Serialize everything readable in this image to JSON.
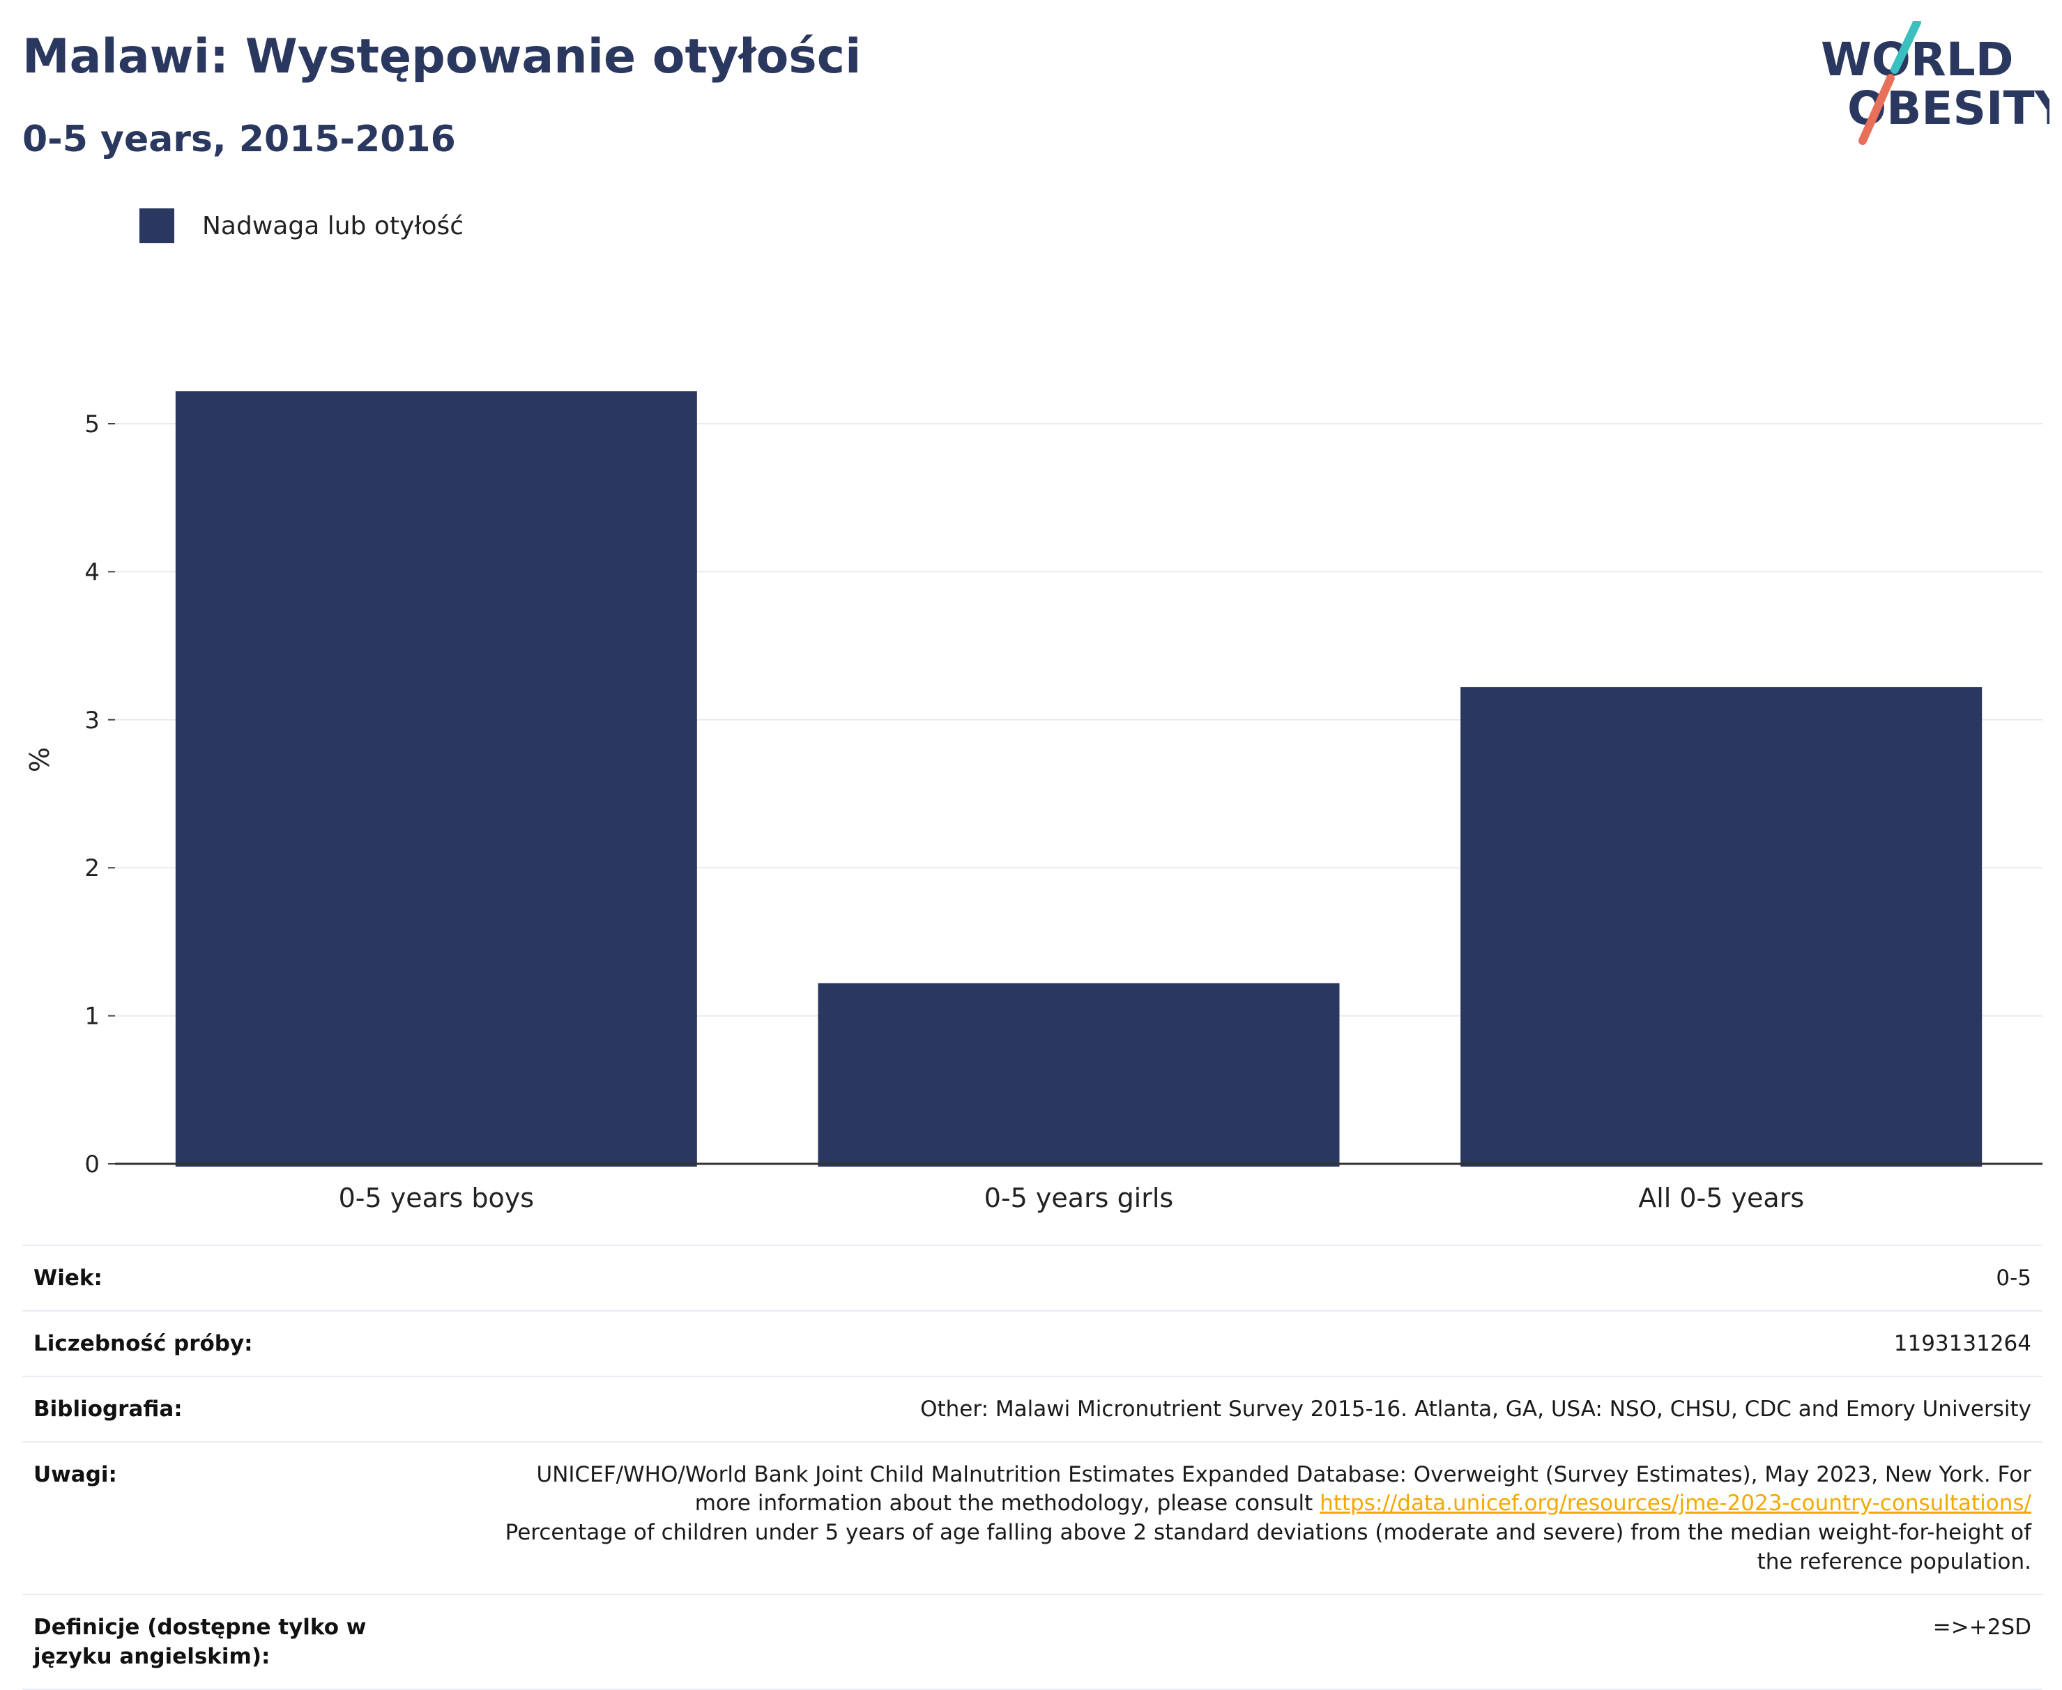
{
  "header": {
    "title": "Malawi: Występowanie otyłości",
    "subtitle": "0-5 years, 2015-2016"
  },
  "logo": {
    "line1": "WORLD",
    "line2": "OBESITY",
    "colors": {
      "text": "#2a375f",
      "slash_top": "#3bbfbf",
      "slash_bottom": "#e8705a"
    }
  },
  "legend": {
    "label": "Nadwaga lub otyłość",
    "color": "#2a375f"
  },
  "chart_data": {
    "type": "bar",
    "categories": [
      "0-5 years boys",
      "0-5 years girls",
      "All 0-5 years"
    ],
    "series": [
      {
        "name": "Nadwaga lub otyłość",
        "values": [
          5.22,
          1.22,
          3.22
        ],
        "color": "#2a375f"
      }
    ],
    "ylabel": "%",
    "ylim": [
      0,
      5.5
    ],
    "yticks": [
      0,
      1,
      2,
      3,
      4,
      5
    ],
    "grid": true,
    "legend_position": "top-left"
  },
  "info": {
    "rows": [
      {
        "label": "Wiek:",
        "value": "0-5"
      },
      {
        "label": "Liczebność próby:",
        "value": "1193131264"
      },
      {
        "label": "Bibliografia:",
        "value": "Other: Malawi Micronutrient Survey 2015-16. Atlanta, GA, USA: NSO, CHSU, CDC and Emory University"
      }
    ],
    "notes": {
      "label": "Uwagi:",
      "text_before": "UNICEF/WHO/World Bank Joint Child Malnutrition Estimates Expanded Database: Overweight (Survey Estimates), May 2023, New York. For more information about the methodology, please consult ",
      "link": "https://data.unicef.org/resources/jme-2023-country-consultations/",
      "text_after": "Percentage of children under 5 years of age falling above 2 standard deviations (moderate and severe) from the median weight-for-height of the reference population."
    },
    "definitions": {
      "label": "Definicje (dostępne tylko w języku angielskim):",
      "value": "=>+2SD"
    }
  }
}
